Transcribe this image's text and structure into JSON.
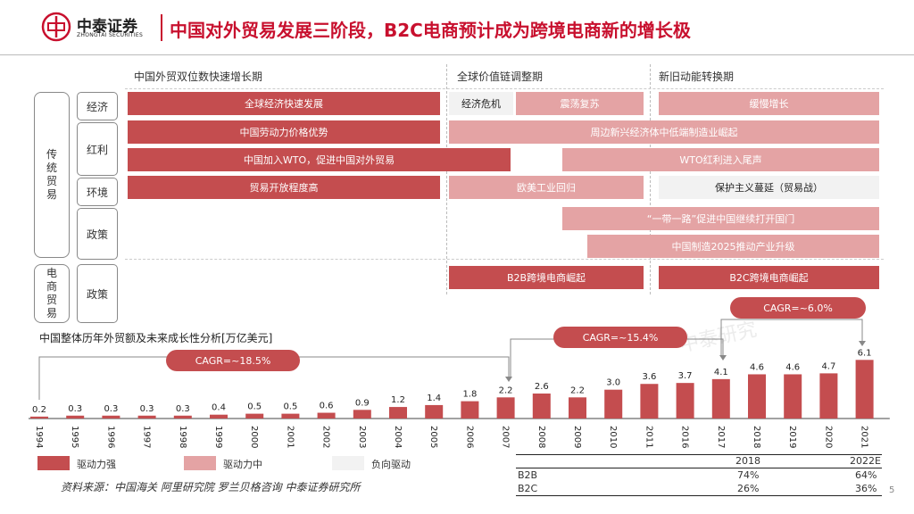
{
  "header": {
    "logo_cn": "中泰证券",
    "logo_en": "ZHONGTAI SECURITIES",
    "title": "中国对外贸易发展三阶段，B2C电商预计成为跨境电商新的增长极"
  },
  "phases": [
    "中国外贸双位数快速增长期",
    "全球价值链调整期",
    "新旧动能转换期"
  ],
  "groups": {
    "traditional": "传统贸易",
    "ecommerce": "电商贸易"
  },
  "row_labels": [
    "经济",
    "红利",
    "环境",
    "政策",
    "政策"
  ],
  "bars": {
    "econ1": "全球经济快速发展",
    "econ2": "经济危机",
    "econ3": "震荡复苏",
    "econ4": "缓慢增长",
    "div1": "中国劳动力价格优势",
    "div2": "周边新兴经济体中低端制造业崛起",
    "div3": "中国加入WTO，促进中国对外贸易",
    "div4": "WTO红利进入尾声",
    "env1": "贸易开放程度高",
    "env2": "欧美工业回归",
    "env3": "保护主义蔓延（贸易战）",
    "pol1": "“一带一路”促进中国继续打开国门",
    "pol2": "中国制造2025推动产业升级",
    "ec1": "B2B跨境电商崛起",
    "ec2": "B2C跨境电商崛起"
  },
  "chart_title": "中国整体历年外贸额及未来成长性分析[万亿美元]",
  "cagr": [
    "CAGR=~18.5%",
    "CAGR=~15.4%",
    "CAGR=~6.0%"
  ],
  "watermark": "中泰研究",
  "chart_data": {
    "type": "bar",
    "title": "中国整体历年外贸额及未来成长性分析[万亿美元]",
    "categories": [
      "1994",
      "1995",
      "1996",
      "1997",
      "1998",
      "1999",
      "2000",
      "2001",
      "2002",
      "2003",
      "2004",
      "2005",
      "2006",
      "2007",
      "2008",
      "2009",
      "2010",
      "2011",
      "2016",
      "2017",
      "2018",
      "2019",
      "2020",
      "2021"
    ],
    "values": [
      0.2,
      0.3,
      0.3,
      0.3,
      0.3,
      0.4,
      0.5,
      0.5,
      0.6,
      0.9,
      1.2,
      1.4,
      1.8,
      2.2,
      2.6,
      2.2,
      3.0,
      3.6,
      3.7,
      4.1,
      4.6,
      4.6,
      4.7,
      6.1
    ],
    "value_labels": [
      "0.2",
      "0.3",
      "0.3",
      "0.3",
      "0.3",
      "0.4",
      "0.5",
      "0.5",
      "0.6",
      "0.9",
      "1.2",
      "1.4",
      "1.8",
      "2.2",
      "2.6",
      "2.2",
      "3.0",
      "3.6",
      "3.7",
      "4.1",
      "4.6",
      "4.6",
      "4.7",
      "6.1"
    ],
    "ylim": [
      0,
      6.5
    ],
    "color": "#c44d4f"
  },
  "legend": [
    "驱动力强",
    "驱动力中",
    "负向驱动"
  ],
  "legend_colors": [
    "#c44d4f",
    "#e4a3a4",
    "#f2f2f2"
  ],
  "table": {
    "headers": [
      "2018",
      "2022E"
    ],
    "rows": [
      {
        "label": "B2B",
        "v1": "74%",
        "v2": "64%"
      },
      {
        "label": "B2C",
        "v1": "26%",
        "v2": "36%"
      }
    ]
  },
  "source": "资料来源：中国海关 阿里研究院 罗兰贝格咨询 中泰证券研究所",
  "page_number": "5"
}
